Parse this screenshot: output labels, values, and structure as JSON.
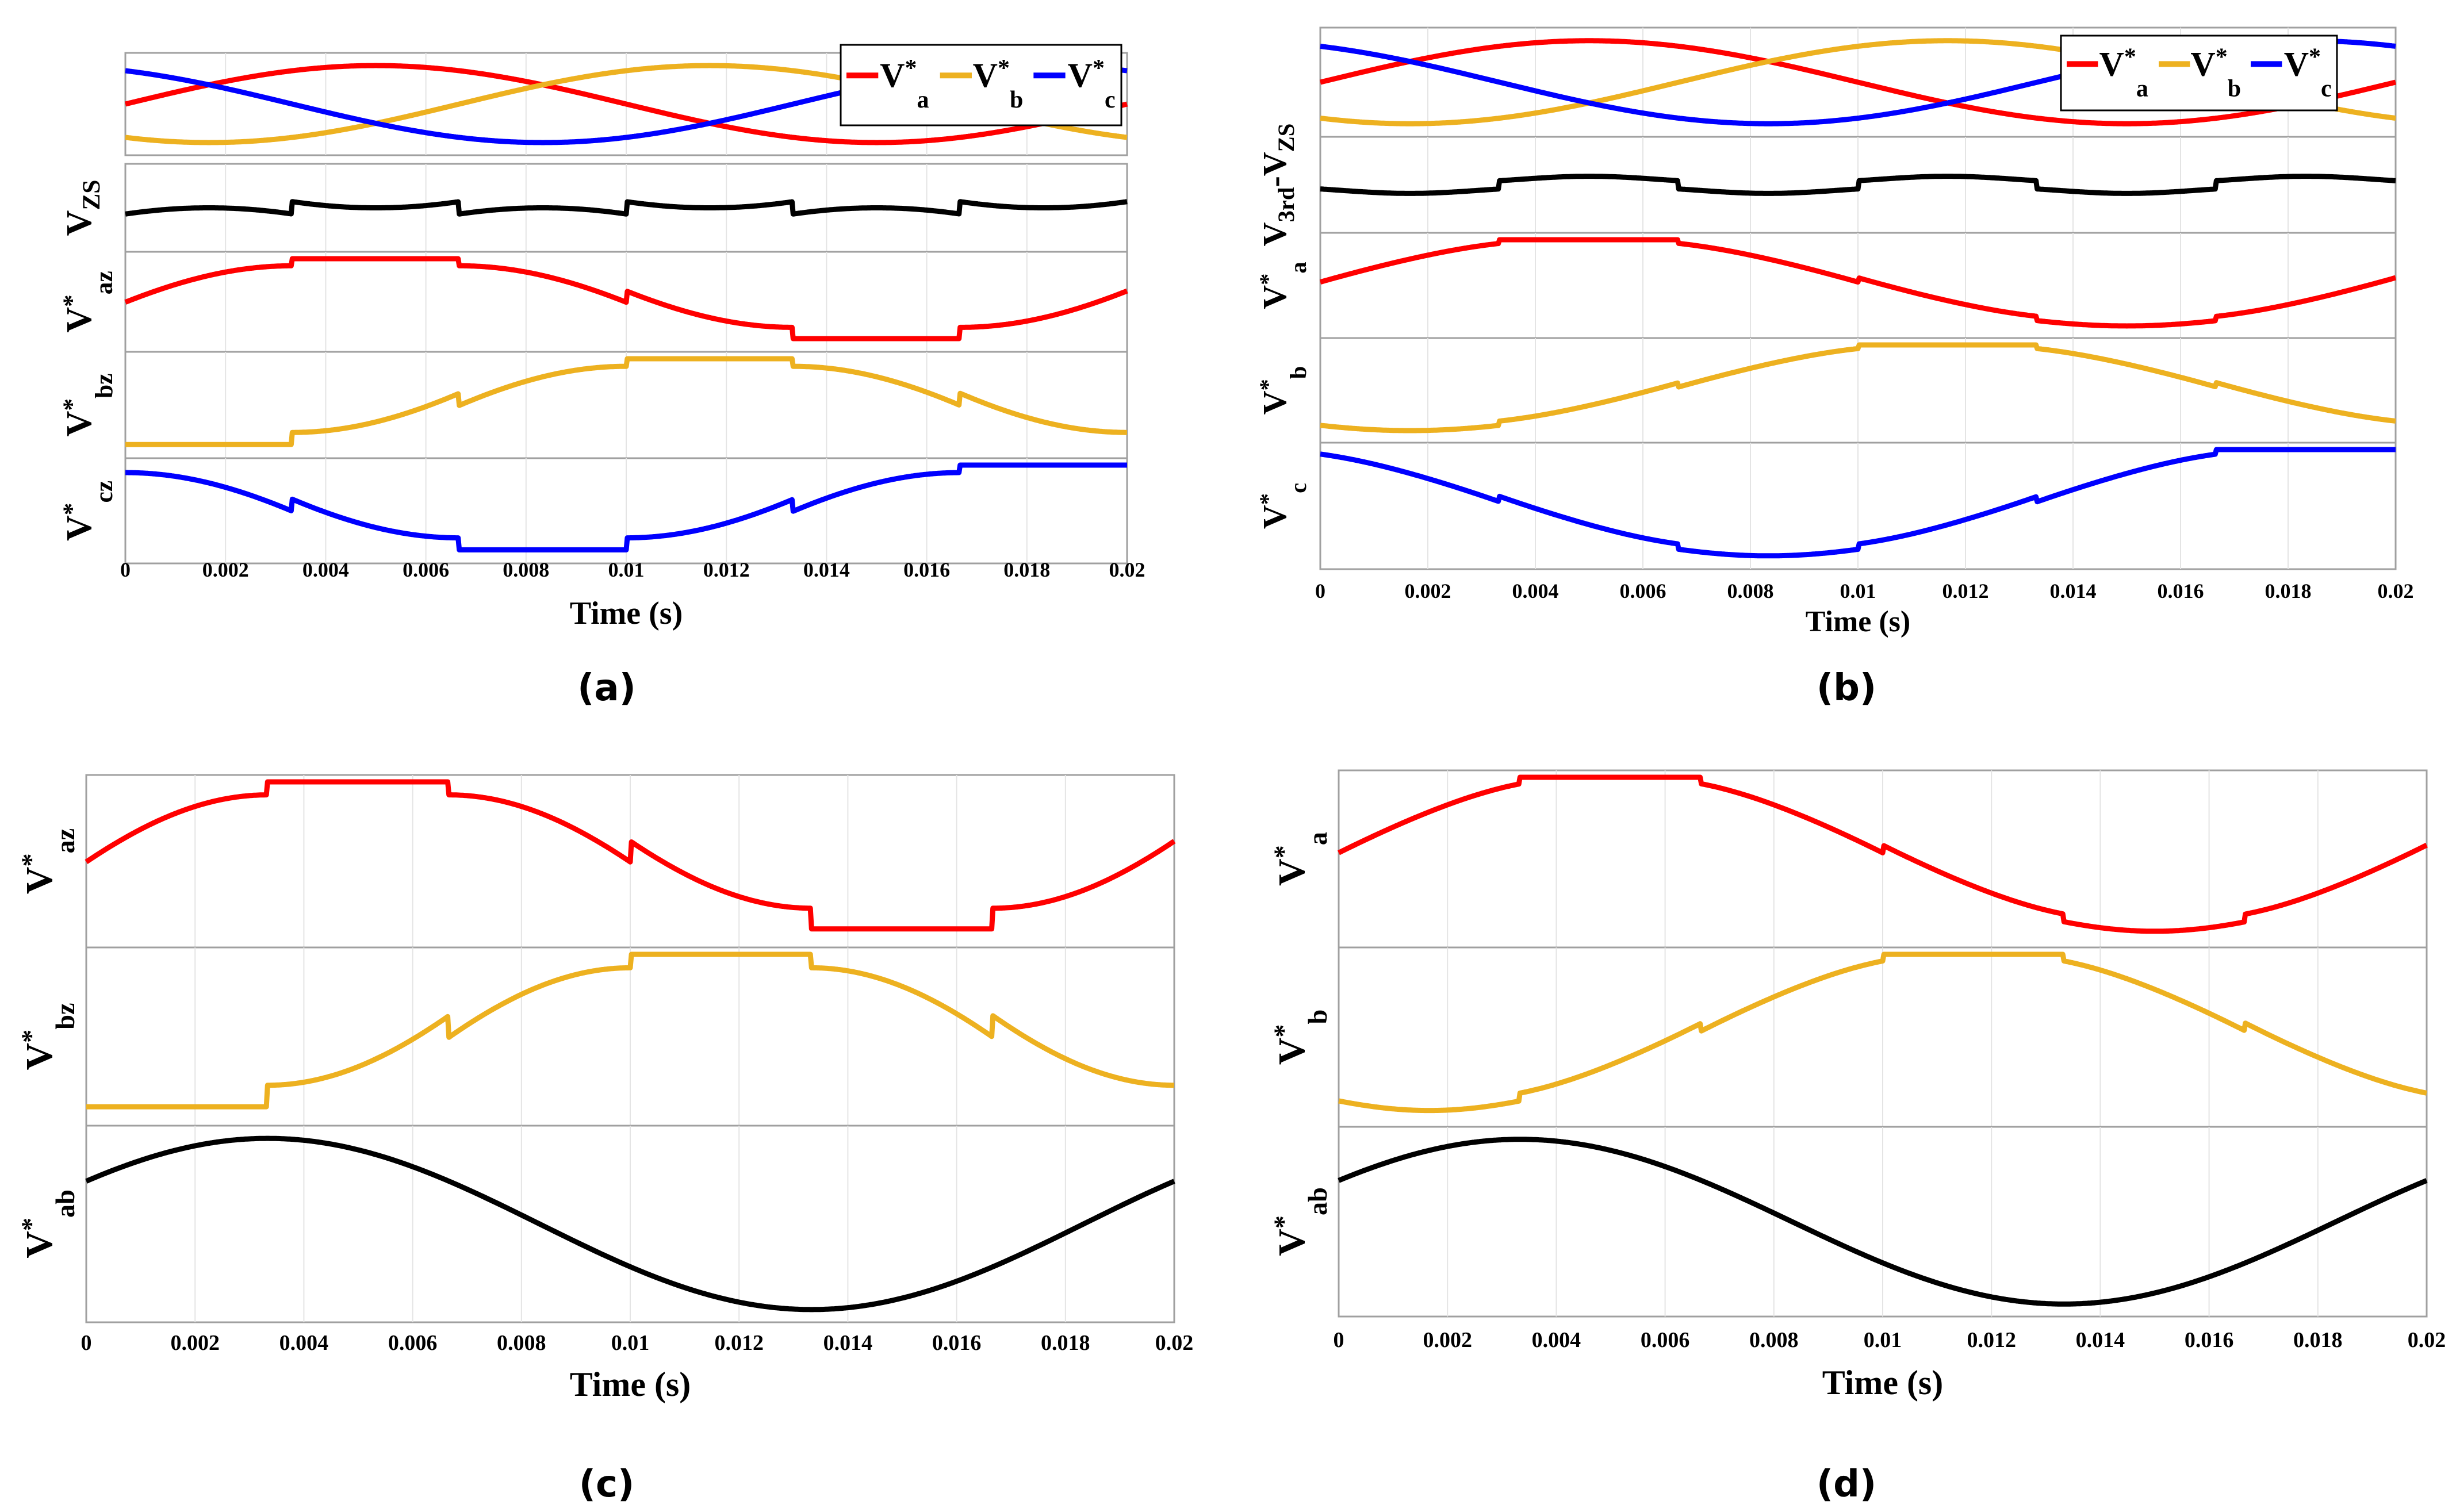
{
  "figure": {
    "panel_labels": [
      "(a)",
      "(b)",
      "(c)",
      "(d)"
    ],
    "colors": {
      "red": "#ff0000",
      "yellow": "#edb120",
      "blue": "#0000ff",
      "black": "#000000",
      "frame": "#a0a0a0",
      "grid": "#e4e4e4"
    }
  },
  "chart_data": [
    {
      "id": "a",
      "type": "line",
      "title": "",
      "xlabel": "Time (s)",
      "xlim": [
        0,
        0.02
      ],
      "xticks": [
        0,
        0.002,
        0.004,
        0.006,
        0.008,
        0.01,
        0.012,
        0.014,
        0.016,
        0.018,
        0.02
      ],
      "xtick_labels": [
        "0",
        "0.002",
        "0.004",
        "0.006",
        "0.008",
        "0.01",
        "0.012",
        "0.014",
        "0.016",
        "0.018",
        "0.02"
      ],
      "caption": "(a)",
      "legend": {
        "placement": "top-right",
        "entries": [
          {
            "base": "V",
            "sup": "*",
            "sub": "a",
            "color": "#ff0000"
          },
          {
            "base": "V",
            "sup": "*",
            "sub": "b",
            "color": "#edb120"
          },
          {
            "base": "V",
            "sup": "*",
            "sub": "c",
            "color": "#0000ff"
          }
        ]
      },
      "subplots": [
        {
          "ylabel": {
            "base": "",
            "sup": "",
            "sub": ""
          },
          "ylim": [
            -1.15,
            1.15
          ],
          "series": [
            {
              "name": "Va*",
              "color": "#ff0000",
              "formula": "sin",
              "amplitude": 1,
              "phase_deg": 0
            },
            {
              "name": "Vb*",
              "color": "#edb120",
              "formula": "sin",
              "amplitude": 1,
              "phase_deg": -120
            },
            {
              "name": "Vc*",
              "color": "#0000ff",
              "formula": "sin",
              "amplitude": 1,
              "phase_deg": 120
            }
          ]
        },
        {
          "ylabel": {
            "base": "V",
            "sup": "",
            "sub": "ZS"
          },
          "ylim": [
            -0.8,
            0.8
          ],
          "series": [
            {
              "name": "VZS",
              "color": "#000000",
              "formula": "zs",
              "scale": 1
            }
          ]
        },
        {
          "ylabel": {
            "base": "V",
            "sup": "*",
            "sub": "az"
          },
          "ylim": [
            -0.15,
            1.9
          ],
          "series": [
            {
              "name": "Vaz*",
              "color": "#ff0000",
              "formula": "dpwm",
              "phase_deg": 0
            }
          ]
        },
        {
          "ylabel": {
            "base": "V",
            "sup": "*",
            "sub": "bz"
          },
          "ylim": [
            -0.15,
            1.9
          ],
          "series": [
            {
              "name": "Vbz*",
              "color": "#edb120",
              "formula": "dpwm",
              "phase_deg": -120
            }
          ]
        },
        {
          "ylabel": {
            "base": "V",
            "sup": "*",
            "sub": "cz"
          },
          "ylim": [
            -0.15,
            1.9
          ],
          "series": [
            {
              "name": "Vcz*",
              "color": "#0000ff",
              "formula": "dpwm",
              "phase_deg": 120
            }
          ]
        }
      ]
    },
    {
      "id": "b",
      "type": "line",
      "xlabel": "Time (s)",
      "xlim": [
        0,
        0.02
      ],
      "xticks": [
        0,
        0.002,
        0.004,
        0.006,
        0.008,
        0.01,
        0.012,
        0.014,
        0.016,
        0.018,
        0.02
      ],
      "xtick_labels": [
        "0",
        "0.002",
        "0.004",
        "0.006",
        "0.008",
        "0.01",
        "0.012",
        "0.014",
        "0.016",
        "0.018",
        "0.02"
      ],
      "caption": "(b)",
      "legend": {
        "placement": "top-right",
        "entries": [
          {
            "base": "V",
            "sup": "*",
            "sub": "a",
            "color": "#ff0000"
          },
          {
            "base": "V",
            "sup": "*",
            "sub": "b",
            "color": "#edb120"
          },
          {
            "base": "V",
            "sup": "*",
            "sub": "c",
            "color": "#0000ff"
          }
        ]
      },
      "subplots": [
        {
          "ylabel": {
            "base": "",
            "sup": "",
            "sub": ""
          },
          "ylim": [
            -1.15,
            1.15
          ],
          "series": [
            {
              "name": "Va*",
              "color": "#ff0000",
              "formula": "sin",
              "amplitude": 1,
              "phase_deg": 0
            },
            {
              "name": "Vb*",
              "color": "#edb120",
              "formula": "sin",
              "amplitude": 1,
              "phase_deg": -120
            },
            {
              "name": "Vc*",
              "color": "#0000ff",
              "formula": "sin",
              "amplitude": 1,
              "phase_deg": 120
            }
          ]
        },
        {
          "ylabel": {
            "base": "V",
            "sup": "",
            "sub": "3rd",
            "tail": "-V",
            "tail_sub": "ZS"
          },
          "ylim": [
            -0.8,
            0.8
          ],
          "series": [
            {
              "name": "V3rd-VZS",
              "color": "#000000",
              "formula": "zs3",
              "scale": 1
            }
          ]
        },
        {
          "ylabel": {
            "base": "V",
            "sup": "*",
            "sub": "a"
          },
          "ylim": [
            -0.15,
            1.9
          ],
          "series": [
            {
              "name": "Va*",
              "color": "#ff0000",
              "formula": "dpwm3",
              "phase_deg": 0
            }
          ]
        },
        {
          "ylabel": {
            "base": "V",
            "sup": "*",
            "sub": "b"
          },
          "ylim": [
            -0.15,
            1.9
          ],
          "series": [
            {
              "name": "Vb*",
              "color": "#edb120",
              "formula": "dpwm3",
              "phase_deg": -120
            }
          ]
        },
        {
          "ylabel": {
            "base": "V",
            "sup": "*",
            "sub": "c"
          },
          "ylim": [
            -0.15,
            1.9
          ],
          "series": [
            {
              "name": "Vc*",
              "color": "#0000ff",
              "formula": "dpwm3",
              "phase_deg": 120
            }
          ]
        }
      ]
    },
    {
      "id": "c",
      "type": "line",
      "xlabel": "Time (s)",
      "xlim": [
        0,
        0.02
      ],
      "xticks": [
        0,
        0.002,
        0.004,
        0.006,
        0.008,
        0.01,
        0.012,
        0.014,
        0.016,
        0.018,
        0.02
      ],
      "xtick_labels": [
        "0",
        "0.002",
        "0.004",
        "0.006",
        "0.008",
        "0.01",
        "0.012",
        "0.014",
        "0.016",
        "0.018",
        "0.02"
      ],
      "caption": "(c)",
      "subplots": [
        {
          "ylabel": {
            "base": "V",
            "sup": "*",
            "sub": "az"
          },
          "ylim": [
            -0.15,
            1.9
          ],
          "series": [
            {
              "name": "Vaz*",
              "color": "#ff0000",
              "formula": "dpwm",
              "phase_deg": 0
            }
          ]
        },
        {
          "ylabel": {
            "base": "V",
            "sup": "*",
            "sub": "bz"
          },
          "ylim": [
            -0.15,
            1.9
          ],
          "series": [
            {
              "name": "Vbz*",
              "color": "#edb120",
              "formula": "dpwm",
              "phase_deg": -120
            }
          ]
        },
        {
          "ylabel": {
            "base": "V",
            "sup": "*",
            "sub": "ab"
          },
          "ylim": [
            -1.85,
            1.85
          ],
          "series": [
            {
              "name": "Vab*",
              "color": "#000000",
              "formula": "sin",
              "amplitude": 1.732,
              "phase_deg": 30
            }
          ]
        }
      ]
    },
    {
      "id": "d",
      "type": "line",
      "xlabel": "Time (s)",
      "xlim": [
        0,
        0.02
      ],
      "xticks": [
        0,
        0.002,
        0.004,
        0.006,
        0.008,
        0.01,
        0.012,
        0.014,
        0.016,
        0.018,
        0.02
      ],
      "xtick_labels": [
        "0",
        "0.002",
        "0.004",
        "0.006",
        "0.008",
        "0.01",
        "0.012",
        "0.014",
        "0.016",
        "0.018",
        "0.02"
      ],
      "caption": "(d)",
      "subplots": [
        {
          "ylabel": {
            "base": "V",
            "sup": "*",
            "sub": "a"
          },
          "ylim": [
            -0.15,
            1.9
          ],
          "series": [
            {
              "name": "Va*",
              "color": "#ff0000",
              "formula": "dpwm3",
              "phase_deg": 0
            }
          ]
        },
        {
          "ylabel": {
            "base": "V",
            "sup": "*",
            "sub": "b"
          },
          "ylim": [
            -0.15,
            1.9
          ],
          "series": [
            {
              "name": "Vb*",
              "color": "#edb120",
              "formula": "dpwm3",
              "phase_deg": -120
            }
          ]
        },
        {
          "ylabel": {
            "base": "V",
            "sup": "*",
            "sub": "ab"
          },
          "ylim": [
            -1.85,
            1.85
          ],
          "series": [
            {
              "name": "Vab*",
              "color": "#000000",
              "formula": "sin",
              "amplitude": 1.732,
              "phase_deg": 30
            }
          ]
        }
      ]
    }
  ]
}
